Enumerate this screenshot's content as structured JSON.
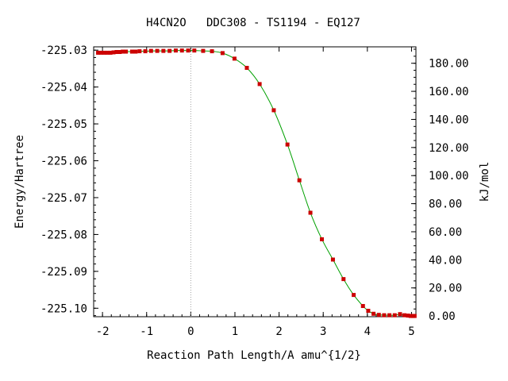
{
  "chart_data": {
    "type": "scatter",
    "title": "H4CN2O   DDC308 - TS1194 - EQ127",
    "xlabel": "Reaction Path Length/A amu^{1/2}",
    "ylabel": "Energy/Hartree",
    "y2label": "kJ/mol",
    "xlim": [
      -2.2,
      5.1
    ],
    "ylim": [
      -225.1023,
      -225.0291
    ],
    "y2lim": [
      -0.5,
      191.7
    ],
    "x_ticks": [
      -2,
      -1,
      0,
      1,
      2,
      3,
      4,
      5
    ],
    "x_tick_labels": [
      "-2",
      "-1",
      "0",
      "1",
      "2",
      "3",
      "4",
      "5"
    ],
    "y_ticks": [
      -225.03,
      -225.04,
      -225.05,
      -225.06,
      -225.07,
      -225.08,
      -225.09,
      -225.1
    ],
    "y_tick_labels": [
      "-225.03",
      "-225.04",
      "-225.05",
      "-225.06",
      "-225.07",
      "-225.08",
      "-225.09",
      "-225.10"
    ],
    "y2_ticks": [
      0,
      20,
      40,
      60,
      80,
      100,
      120,
      140,
      160,
      180
    ],
    "y2_tick_labels": [
      "0.00",
      "20.00",
      "40.00",
      "60.00",
      "80.00",
      "100.00",
      "120.00",
      "140.00",
      "160.00",
      "180.00"
    ],
    "vline_x": 0,
    "grid": false,
    "colors": {
      "curve": "#00a000",
      "points": "#cc0000",
      "vline": "#a0a0a0",
      "axis": "#000000"
    },
    "series": [
      {
        "x": [
          -2.1,
          -2.03,
          -1.96,
          -1.89,
          -1.82,
          -1.75,
          -1.68,
          -1.61,
          -1.54,
          -1.47,
          -1.33,
          -1.25,
          -1.16,
          -1.03,
          -0.9,
          -0.76,
          -0.62,
          -0.48,
          -0.34,
          -0.2,
          -0.06,
          0.08,
          0.28,
          0.48,
          0.72,
          0.99,
          1.27,
          1.56,
          1.88,
          2.19,
          2.46,
          2.71,
          2.97,
          3.22,
          3.46,
          3.69,
          3.9,
          4.02,
          4.14,
          4.26,
          4.38,
          4.5,
          4.62,
          4.74,
          4.84,
          4.92,
          4.98,
          5.03,
          5.07
        ],
        "y": [
          -225.0307,
          -225.0307,
          -225.0307,
          -225.0307,
          -225.0307,
          -225.0306,
          -225.0305,
          -225.0305,
          -225.0304,
          -225.0304,
          -225.0304,
          -225.0304,
          -225.0303,
          -225.0303,
          -225.0302,
          -225.0302,
          -225.0302,
          -225.0302,
          -225.0301,
          -225.0301,
          -225.0301,
          -225.0301,
          -225.0302,
          -225.0303,
          -225.0308,
          -225.0323,
          -225.0348,
          -225.0392,
          -225.0463,
          -225.0556,
          -225.0653,
          -225.0741,
          -225.0813,
          -225.0868,
          -225.0921,
          -225.0964,
          -225.0994,
          -225.1007,
          -225.1015,
          -225.1018,
          -225.1019,
          -225.1019,
          -225.1019,
          -225.1016,
          -225.1019,
          -225.102,
          -225.1021,
          -225.1021,
          -225.1021
        ]
      }
    ]
  }
}
